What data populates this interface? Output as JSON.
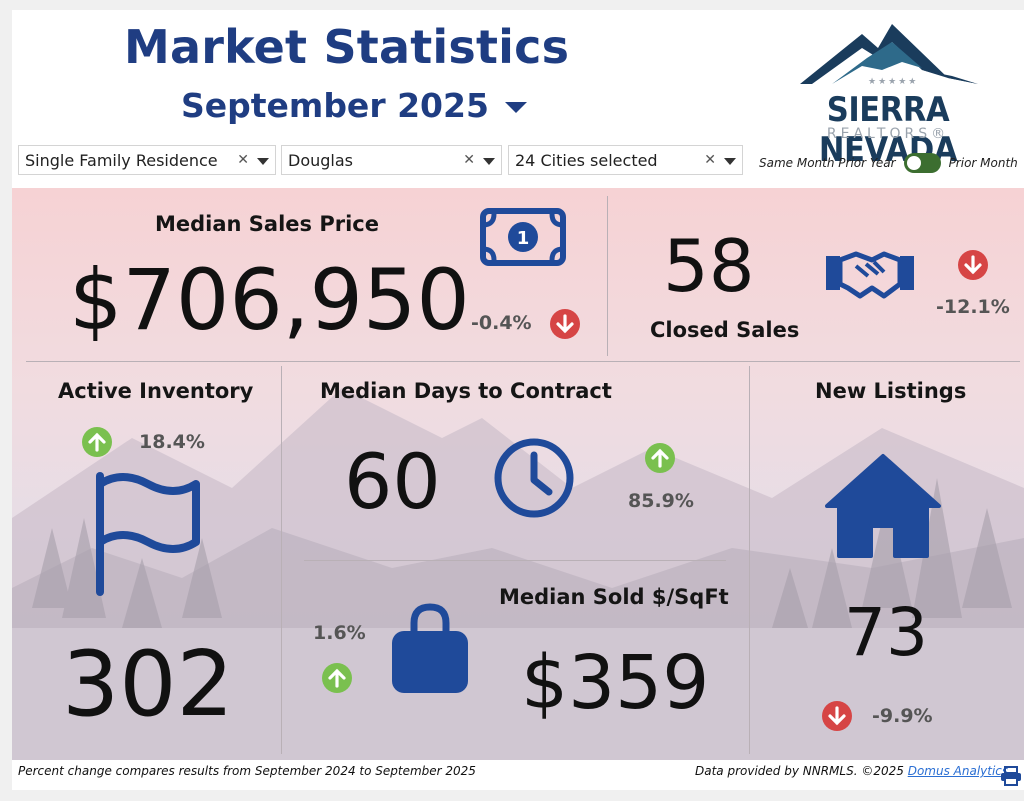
{
  "header": {
    "title": "Market Statistics",
    "month": "September 2025",
    "logo": {
      "name": "SIERRA NEVADA",
      "sub": "REALTORS®"
    }
  },
  "filters": [
    {
      "value": "Single Family Residence"
    },
    {
      "value": "Douglas"
    },
    {
      "value": "24 Cities selected"
    }
  ],
  "toggle": {
    "left_label": "Same Month Prior Year",
    "right_label": "Prior Month",
    "state": "on"
  },
  "stats": {
    "median_sales_price": {
      "label": "Median Sales Price",
      "value": "$706,950",
      "change": "-0.4%",
      "direction": "down"
    },
    "closed_sales": {
      "label": "Closed Sales",
      "value": "58",
      "change": "-12.1%",
      "direction": "down"
    },
    "active_inventory": {
      "label": "Active Inventory",
      "value": "302",
      "change": "18.4%",
      "direction": "up"
    },
    "median_days_to_contract": {
      "label": "Median Days to Contract",
      "value": "60",
      "change": "85.9%",
      "direction": "up"
    },
    "median_sold_sqft": {
      "label": "Median Sold $/SqFt",
      "value": "$359",
      "change": "1.6%",
      "direction": "up"
    },
    "new_listings": {
      "label": "New Listings",
      "value": "73",
      "change": "-9.9%",
      "direction": "down"
    }
  },
  "footer": {
    "note": "Percent change compares results from September 2024 to September 2025",
    "credit": "Data provided by NNRMLS. ©2025",
    "link": "Domus Analytics"
  },
  "colors": {
    "brand_blue": "#1f3d82",
    "icon_blue": "#1f4a9a",
    "up": "#7ac04f",
    "down": "#d64545",
    "toggle": "#3c6e30"
  },
  "icons": [
    "money-icon",
    "handshake-icon",
    "flag-icon",
    "clock-icon",
    "shopping-bag-icon",
    "house-icon",
    "print-icon",
    "arrow-up-icon",
    "arrow-down-icon"
  ]
}
